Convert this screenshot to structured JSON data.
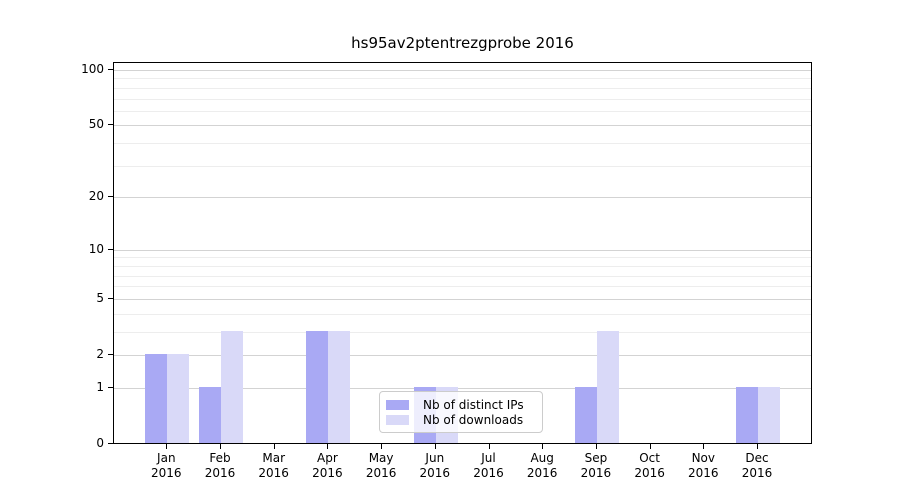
{
  "chart_data": {
    "type": "bar",
    "title": "hs95av2ptentrezgprobe 2016",
    "categories": [
      "Jan 2016",
      "Feb 2016",
      "Mar 2016",
      "Apr 2016",
      "May 2016",
      "Jun 2016",
      "Jul 2016",
      "Aug 2016",
      "Sep 2016",
      "Oct 2016",
      "Nov 2016",
      "Dec 2016"
    ],
    "xaxis": {
      "months": [
        "Jan",
        "Feb",
        "Mar",
        "Apr",
        "May",
        "Jun",
        "Jul",
        "Aug",
        "Sep",
        "Oct",
        "Nov",
        "Dec"
      ],
      "year_line": "2016"
    },
    "yaxis": {
      "scale": "log1p",
      "ticks": [
        0,
        1,
        2,
        5,
        10,
        20,
        50,
        100
      ],
      "minor_gridlines": [
        3,
        4,
        6,
        7,
        8,
        9,
        30,
        40,
        60,
        70,
        80,
        90
      ],
      "max_value": 100
    },
    "series": [
      {
        "name": "Nb of distinct IPs",
        "color": "#a9a9f4",
        "values": [
          2,
          1,
          0,
          3,
          0,
          1,
          0,
          0,
          1,
          0,
          0,
          1
        ]
      },
      {
        "name": "Nb of downloads",
        "color": "#d9d9f8",
        "values": [
          2,
          3,
          0,
          3,
          0,
          1,
          0,
          0,
          3,
          0,
          0,
          1
        ]
      }
    ],
    "legend": {
      "position": "lower center"
    },
    "grid": true,
    "colors": {
      "background": "#ffffff",
      "spine": "#000000",
      "grid_major": "#d3d3d3",
      "grid_minor": "#ededed",
      "text": "#000000"
    }
  }
}
